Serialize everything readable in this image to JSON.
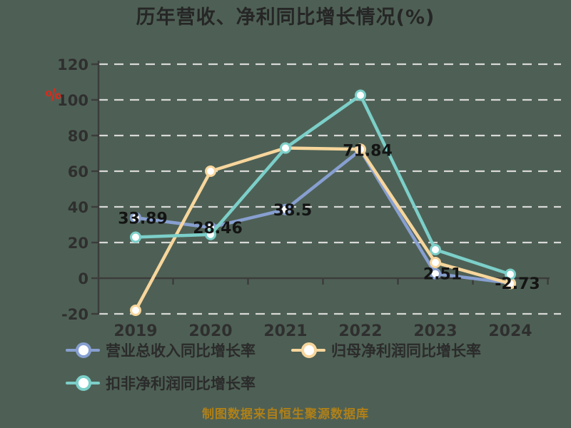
{
  "title": "历年营收、净利同比增长情况(%)",
  "chart_data": {
    "type": "line",
    "title": "历年营收、净利同比增长情况(%)",
    "categories": [
      "2019",
      "2020",
      "2021",
      "2022",
      "2023",
      "2024"
    ],
    "series": [
      {
        "name": "营业总收入同比增长率",
        "color": "#879fd0",
        "values": [
          33.89,
          28.46,
          38.5,
          71.84,
          2.51,
          -2.73
        ],
        "point_labels": [
          "33.89",
          "28.46",
          "38.5",
          "71.84",
          "2.51",
          "-2.73"
        ]
      },
      {
        "name": "归母净利润同比增长率",
        "color": "#f7d69c",
        "values": [
          -18,
          60,
          73,
          72.3,
          8.8,
          -3
        ]
      },
      {
        "name": "扣非净利润同比增长率",
        "color": "#7ccfc9",
        "values": [
          23,
          24.5,
          73,
          102.6,
          16,
          2.2
        ]
      }
    ],
    "ylim": [
      -20,
      120
    ],
    "yticks": [
      120,
      100,
      80,
      60,
      40,
      20,
      0,
      -20
    ],
    "y_unit": "%",
    "grid": "dashed horizontal",
    "legend_position": "bottom-left"
  },
  "footer": {
    "source_text": "制图数据来自恒生聚源数据库"
  },
  "colors": {
    "background": "#4e6055",
    "title": "#262626",
    "axis": "#3c3c3c",
    "tick_label": "#2f2f2f",
    "grid": "#d8d8d8",
    "data_label": "#141414",
    "y_unit": "#d92b1c",
    "legend_text": "#2b2b2b",
    "caption": "#b08018",
    "marker_fill": "#ffffff"
  }
}
